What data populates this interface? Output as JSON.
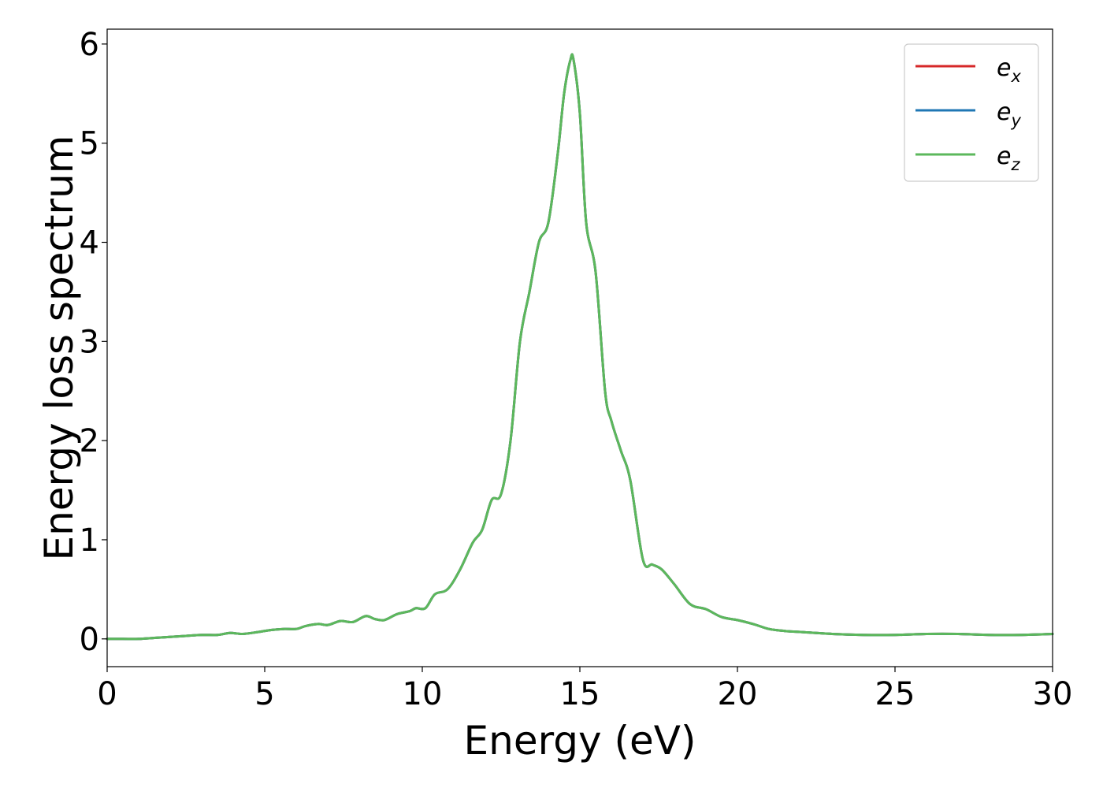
{
  "chart_data": {
    "type": "line",
    "title": "",
    "xlabel": "Energy (eV)",
    "ylabel": "Energy loss spectrum",
    "xlim": [
      0,
      30
    ],
    "ylim": [
      -0.28,
      6.15
    ],
    "xticks": [
      0,
      5,
      10,
      15,
      20,
      25,
      30
    ],
    "yticks": [
      0,
      1,
      2,
      3,
      4,
      5,
      6
    ],
    "grid": false,
    "legend_position": "top-right",
    "series": [
      {
        "name": "e",
        "subscript": "x",
        "color": "#d62728",
        "x": [
          0,
          0.5,
          1.0,
          1.5,
          2.0,
          2.5,
          3.0,
          3.5,
          3.9,
          4.3,
          4.8,
          5.2,
          5.6,
          6.0,
          6.3,
          6.7,
          7.0,
          7.4,
          7.8,
          8.2,
          8.5,
          8.8,
          9.2,
          9.6,
          9.8,
          10.1,
          10.4,
          10.8,
          11.2,
          11.6,
          11.9,
          12.2,
          12.5,
          12.8,
          13.1,
          13.4,
          13.7,
          14.0,
          14.3,
          14.5,
          14.7,
          14.8,
          15.0,
          15.2,
          15.5,
          15.8,
          16.0,
          16.3,
          16.6,
          17.0,
          17.3,
          17.6,
          18.0,
          18.5,
          19.0,
          19.5,
          20.0,
          20.5,
          21.0,
          21.5,
          22.0,
          23.0,
          24.0,
          25.0,
          26.0,
          27.0,
          28.0,
          29.0,
          30.0
        ],
        "values": [
          0.0,
          0.0,
          0.0,
          0.01,
          0.02,
          0.03,
          0.04,
          0.04,
          0.06,
          0.05,
          0.07,
          0.09,
          0.1,
          0.1,
          0.13,
          0.15,
          0.14,
          0.18,
          0.17,
          0.23,
          0.2,
          0.19,
          0.25,
          0.28,
          0.31,
          0.31,
          0.45,
          0.5,
          0.7,
          0.97,
          1.1,
          1.4,
          1.46,
          2.0,
          3.0,
          3.5,
          4.0,
          4.2,
          4.9,
          5.5,
          5.84,
          5.84,
          5.3,
          4.2,
          3.7,
          2.5,
          2.2,
          1.9,
          1.6,
          0.8,
          0.75,
          0.7,
          0.55,
          0.35,
          0.3,
          0.22,
          0.19,
          0.15,
          0.1,
          0.08,
          0.07,
          0.05,
          0.04,
          0.04,
          0.05,
          0.05,
          0.04,
          0.04,
          0.05
        ]
      },
      {
        "name": "e",
        "subscript": "y",
        "color": "#1f77b4",
        "x": [
          0,
          0.5,
          1.0,
          1.5,
          2.0,
          2.5,
          3.0,
          3.5,
          3.9,
          4.3,
          4.8,
          5.2,
          5.6,
          6.0,
          6.3,
          6.7,
          7.0,
          7.4,
          7.8,
          8.2,
          8.5,
          8.8,
          9.2,
          9.6,
          9.8,
          10.1,
          10.4,
          10.8,
          11.2,
          11.6,
          11.9,
          12.2,
          12.5,
          12.8,
          13.1,
          13.4,
          13.7,
          14.0,
          14.3,
          14.5,
          14.7,
          14.8,
          15.0,
          15.2,
          15.5,
          15.8,
          16.0,
          16.3,
          16.6,
          17.0,
          17.3,
          17.6,
          18.0,
          18.5,
          19.0,
          19.5,
          20.0,
          20.5,
          21.0,
          21.5,
          22.0,
          23.0,
          24.0,
          25.0,
          26.0,
          27.0,
          28.0,
          29.0,
          30.0
        ],
        "values": [
          0.0,
          0.0,
          0.0,
          0.01,
          0.02,
          0.03,
          0.04,
          0.04,
          0.06,
          0.05,
          0.07,
          0.09,
          0.1,
          0.1,
          0.13,
          0.15,
          0.14,
          0.18,
          0.17,
          0.23,
          0.2,
          0.19,
          0.25,
          0.28,
          0.31,
          0.31,
          0.45,
          0.5,
          0.7,
          0.97,
          1.1,
          1.4,
          1.46,
          2.0,
          3.0,
          3.5,
          4.0,
          4.2,
          4.9,
          5.5,
          5.84,
          5.84,
          5.3,
          4.2,
          3.7,
          2.5,
          2.2,
          1.9,
          1.6,
          0.8,
          0.75,
          0.7,
          0.55,
          0.35,
          0.3,
          0.22,
          0.19,
          0.15,
          0.1,
          0.08,
          0.07,
          0.05,
          0.04,
          0.04,
          0.05,
          0.05,
          0.04,
          0.04,
          0.05
        ]
      },
      {
        "name": "e",
        "subscript": "z",
        "color": "#5cb85c",
        "x": [
          0,
          0.5,
          1.0,
          1.5,
          2.0,
          2.5,
          3.0,
          3.5,
          3.9,
          4.3,
          4.8,
          5.2,
          5.6,
          6.0,
          6.3,
          6.7,
          7.0,
          7.4,
          7.8,
          8.2,
          8.5,
          8.8,
          9.2,
          9.6,
          9.8,
          10.1,
          10.4,
          10.8,
          11.2,
          11.6,
          11.9,
          12.2,
          12.5,
          12.8,
          13.1,
          13.4,
          13.7,
          14.0,
          14.3,
          14.5,
          14.7,
          14.8,
          15.0,
          15.2,
          15.5,
          15.8,
          16.0,
          16.3,
          16.6,
          17.0,
          17.3,
          17.6,
          18.0,
          18.5,
          19.0,
          19.5,
          20.0,
          20.5,
          21.0,
          21.5,
          22.0,
          23.0,
          24.0,
          25.0,
          26.0,
          27.0,
          28.0,
          29.0,
          30.0
        ],
        "values": [
          0.0,
          0.0,
          0.0,
          0.01,
          0.02,
          0.03,
          0.04,
          0.04,
          0.06,
          0.05,
          0.07,
          0.09,
          0.1,
          0.1,
          0.13,
          0.15,
          0.14,
          0.18,
          0.17,
          0.23,
          0.2,
          0.19,
          0.25,
          0.28,
          0.31,
          0.31,
          0.45,
          0.5,
          0.7,
          0.97,
          1.1,
          1.4,
          1.46,
          2.0,
          3.0,
          3.5,
          4.0,
          4.2,
          4.9,
          5.5,
          5.84,
          5.84,
          5.3,
          4.2,
          3.7,
          2.5,
          2.2,
          1.9,
          1.6,
          0.8,
          0.75,
          0.7,
          0.55,
          0.35,
          0.3,
          0.22,
          0.19,
          0.15,
          0.1,
          0.08,
          0.07,
          0.05,
          0.04,
          0.04,
          0.05,
          0.05,
          0.04,
          0.04,
          0.05
        ]
      }
    ]
  }
}
